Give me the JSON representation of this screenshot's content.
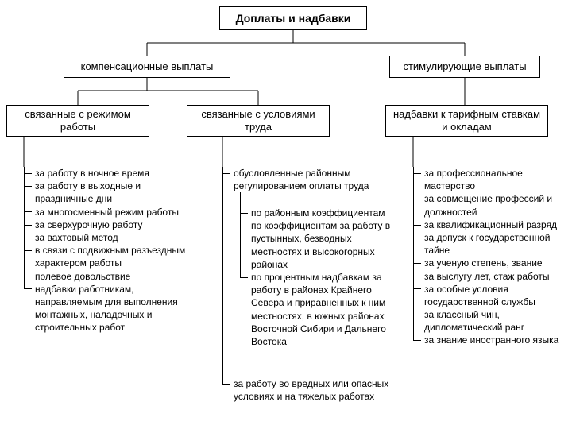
{
  "diagram": {
    "type": "tree",
    "background_color": "#ffffff",
    "border_color": "#000000",
    "text_color": "#000000",
    "font_family": "Arial, sans-serif",
    "root": {
      "label": "Доплаты и надбавки",
      "fontsize": 14,
      "bold": true
    },
    "level1": [
      {
        "id": "comp",
        "label": "компенсационные выплаты",
        "fontsize": 13
      },
      {
        "id": "stim",
        "label": "стимулирующие выплаты",
        "fontsize": 13
      }
    ],
    "level2": [
      {
        "id": "mode",
        "parent": "comp",
        "label": "связанные с режимом работы",
        "fontsize": 13
      },
      {
        "id": "cond",
        "parent": "comp",
        "label": "связанные с условиями труда",
        "fontsize": 13
      },
      {
        "id": "tariff",
        "parent": "stim",
        "label": "надбавки к тарифным ставкам и окладам",
        "fontsize": 13
      }
    ],
    "lists": {
      "mode": [
        "за работу в ночное время",
        "за работу в выходные и праздничные дни",
        "за многосменный режим работы",
        "за сверхурочную работу",
        "за вахтовый метод",
        "в связи с подвижным разъездным характером работы",
        "полевое довольствие",
        "надбавки работникам, направляемым для выполнения монтажных, наладочных и строительных работ"
      ],
      "cond_primary": [
        "обусловленные районным регулированием оплаты труда"
      ],
      "cond_sub": [
        "по районным коэффициентам",
        "по коэффициентам за работу в пустынных, безводных местностях и высокогорных районах",
        "по процентным надбавкам за работу в районах Крайнего Севера и приравненных к ним местностях, в южных районах Восточной Сибири и Дальнего Востока"
      ],
      "cond_tail": [
        "за работу во вредных или опасных условиях и на тяжелых работах"
      ],
      "tariff": [
        "за профессиональное мастерство",
        "за совмещение профессий и должностей",
        "за квалификационный разряд",
        "за допуск к государственной тайне",
        "за ученую степень, звание",
        "за выслугу лет, стаж работы",
        "за особые условия государственной службы",
        "за классный чин, дипломатический ранг",
        "за знание иностранного языка"
      ]
    },
    "list_fontsize": 12
  }
}
